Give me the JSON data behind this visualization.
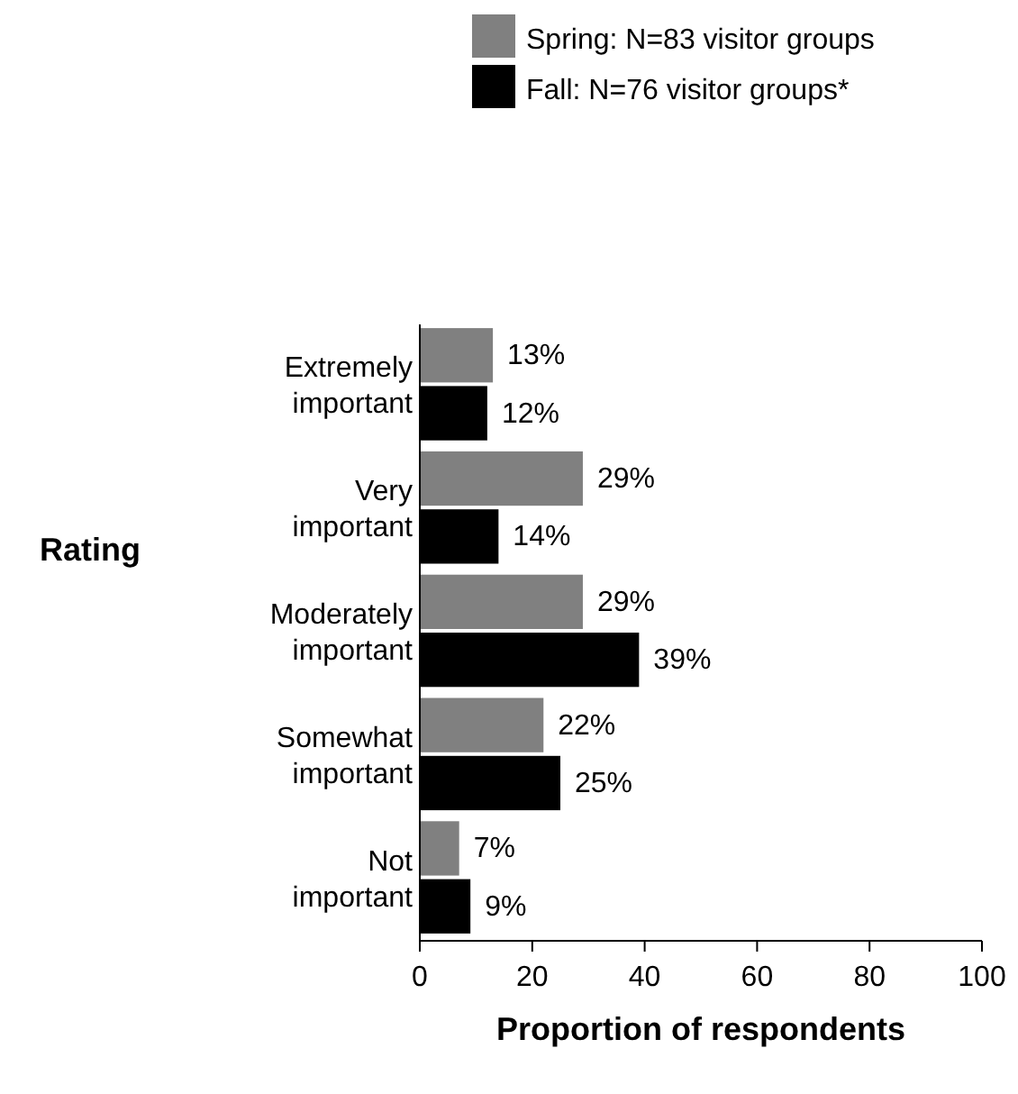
{
  "chart_data": {
    "type": "bar",
    "orientation": "horizontal",
    "categories": [
      "Extremely important",
      "Very important",
      "Moderately important",
      "Somewhat important",
      "Not important"
    ],
    "series": [
      {
        "name": "Spring: N=83 visitor groups",
        "color": "#808080",
        "values": [
          13,
          29,
          29,
          22,
          7
        ],
        "value_labels": [
          "13%",
          "29%",
          "29%",
          "22%",
          "7%"
        ]
      },
      {
        "name": "Fall: N=76 visitor groups*",
        "color": "#000000",
        "values": [
          12,
          14,
          39,
          25,
          9
        ],
        "value_labels": [
          "12%",
          "14%",
          "39%",
          "25%",
          "9%"
        ]
      }
    ],
    "xlim": [
      0,
      100
    ],
    "xticks": [
      0,
      20,
      40,
      60,
      80,
      100
    ],
    "xlabel": "Proportion of respondents",
    "ylabel": "Rating",
    "legend": "top",
    "grid": false
  }
}
